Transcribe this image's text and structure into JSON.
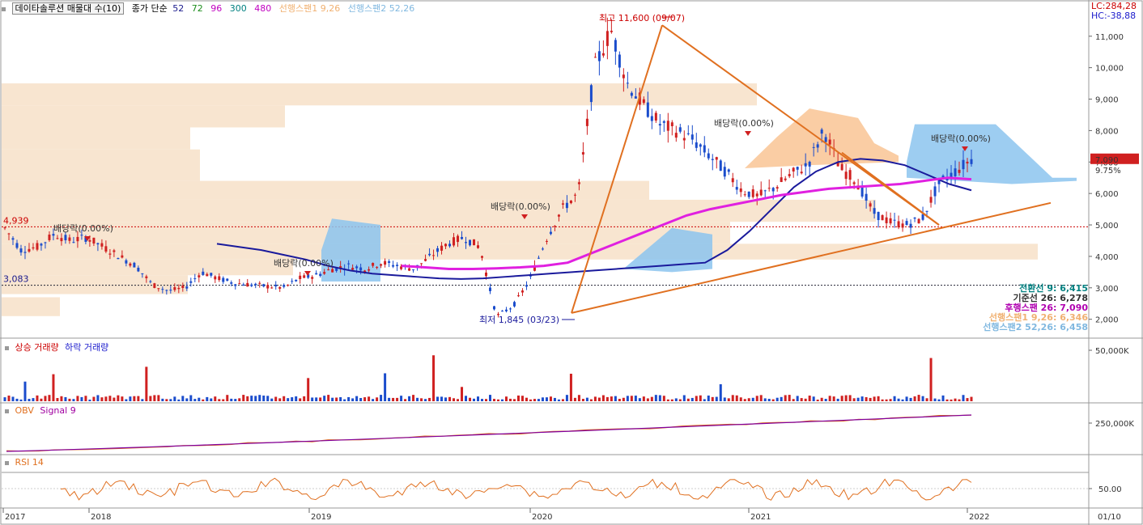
{
  "header": {
    "title": "데이타솔루션 매물대 수(10)",
    "ma_label": "종가 단순",
    "ma_periods": [
      "52",
      "72",
      "96",
      "300",
      "480"
    ],
    "ma_colors": [
      "#1a1a8c",
      "#1a8c1a",
      "#c000c0",
      "#008080",
      "#c000c0"
    ],
    "span1_label": "선행스팬1 9,26",
    "span2_label": "선행스팬2 52,26",
    "lc": "LC:284,28",
    "hc": "HC:-38,88"
  },
  "panels": {
    "volume": {
      "up_label": "상승 거래량",
      "down_label": "하락 거래량",
      "tick": "50,000K"
    },
    "obv": {
      "label": "OBV",
      "signal": "Signal 9",
      "tick": "250,000K"
    },
    "rsi": {
      "label": "RSI 14",
      "tick": "50.00"
    }
  },
  "annotations": {
    "high": "최고 11,600 (09/07)",
    "low": "최저 1,845 (03/23)",
    "dividend": "배당락(0.00%)",
    "level_493": "4,939",
    "level_3083": "3,083",
    "last_price": "7,090",
    "last_change": "9.75%"
  },
  "legend_values": [
    {
      "label": "전환선 9: 6,415",
      "color": "#008080"
    },
    {
      "label": "기준선 26: 6,278",
      "color": "#333333"
    },
    {
      "label": "후행스팬 26: 7,090",
      "color": "#b000b0"
    },
    {
      "label": "선행스팬1 9,26: 6,346",
      "color": "#f0b070"
    },
    {
      "label": "선행스팬2 52,26: 6,458",
      "color": "#80b8e0"
    }
  ],
  "chart_data": {
    "type": "candlestick",
    "title": "데이타솔루션",
    "y_ticks": [
      2000,
      3000,
      4000,
      5000,
      6000,
      7000,
      8000,
      9000,
      10000,
      11000
    ],
    "y_tick_labels": [
      "2,000",
      "3,000",
      "4,000",
      "5,000",
      "6,000",
      "7,000",
      "8,000",
      "9,000",
      "10,000",
      "11,000"
    ],
    "ylim": [
      1400,
      12100
    ],
    "x_labels": [
      "2017",
      "2018",
      "2019",
      "2020",
      "2021",
      "2022",
      "01/10"
    ],
    "high": {
      "value": 11600,
      "date": "09/07"
    },
    "low": {
      "value": 1845,
      "date": "03/23"
    },
    "last_close": 7090,
    "volume_profile_levels": [
      2400,
      3900,
      4600,
      5100,
      6100,
      7300,
      8000,
      8800,
      9500
    ],
    "series_price": [
      4900,
      4200,
      4300,
      4700,
      4500,
      4600,
      4300,
      4000,
      3700,
      3100,
      2900,
      3000,
      3500,
      3300,
      3150,
      3100,
      3050,
      3000,
      3300,
      3400,
      3600,
      3700,
      3600,
      3800,
      3700,
      3600,
      4000,
      4400,
      4600,
      4300,
      2100,
      2400,
      3200,
      4500,
      5500,
      6000,
      10000,
      11200,
      9500,
      8800,
      8200,
      8000,
      7700,
      7200,
      6700,
      6100,
      5900,
      6200,
      6600,
      6900,
      8000,
      6800,
      6400,
      5400,
      5100,
      5000,
      5200,
      6300,
      6700,
      7090
    ],
    "ma52": [
      4400,
      4300,
      4200,
      4050,
      3900,
      3700,
      3550,
      3450,
      3400,
      3350,
      3300,
      3280,
      3300,
      3350,
      3400,
      3450,
      3500,
      3550,
      3600,
      3650,
      3700,
      3750,
      3800,
      4200,
      4800,
      5500,
      6200,
      6700,
      7000,
      7100,
      7050,
      6900,
      6600,
      6300,
      6100
    ],
    "trailing_span": [
      3700,
      3650,
      3600,
      3600,
      3620,
      3650,
      3700,
      3800,
      4100,
      4400,
      4700,
      5000,
      5300,
      5500,
      5650,
      5800,
      5950,
      6050,
      6150,
      6200,
      6250,
      6300,
      6400,
      6500,
      6450
    ],
    "rsi_ref": 50
  }
}
